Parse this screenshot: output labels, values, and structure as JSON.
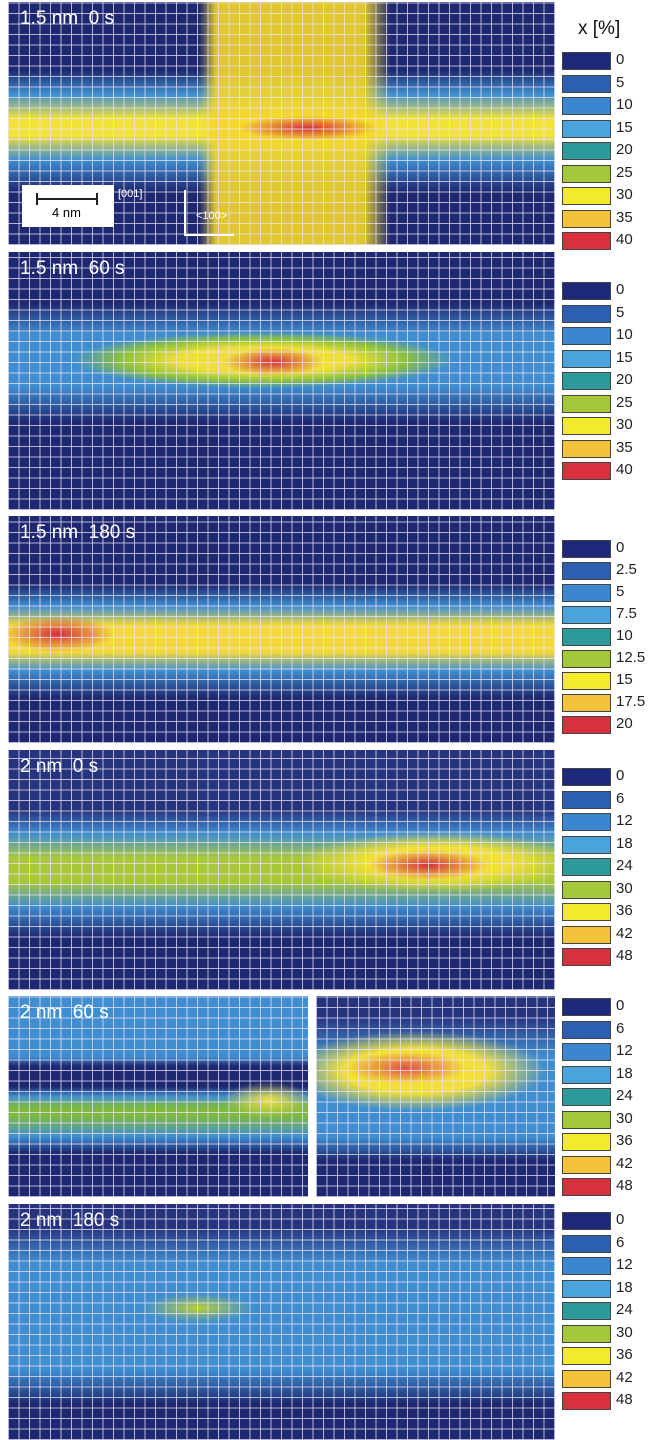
{
  "legend_title": "x [%]",
  "scale_bar": "4 nm",
  "directions": [
    "[001]",
    "<100>"
  ],
  "panels": [
    {
      "label": "1.5 nm  0 s",
      "legend": [
        0,
        5,
        10,
        15,
        20,
        25,
        30,
        35,
        40
      ]
    },
    {
      "label": "1.5 nm  60 s",
      "legend": [
        0,
        5,
        10,
        15,
        20,
        25,
        30,
        35,
        40
      ]
    },
    {
      "label": "1.5 nm  180 s",
      "legend": [
        0,
        2.5,
        5,
        7.5,
        10,
        12.5,
        15,
        17.5,
        20
      ]
    },
    {
      "label": "2 nm  0 s",
      "legend": [
        0,
        6,
        12,
        18,
        24,
        30,
        36,
        42,
        48
      ]
    },
    {
      "label": "2 nm  60 s",
      "legend": [
        0,
        6,
        12,
        18,
        24,
        30,
        36,
        42,
        48
      ]
    },
    {
      "label": "2 nm  180 s",
      "legend": [
        0,
        6,
        12,
        18,
        24,
        30,
        36,
        42,
        48
      ]
    }
  ]
}
